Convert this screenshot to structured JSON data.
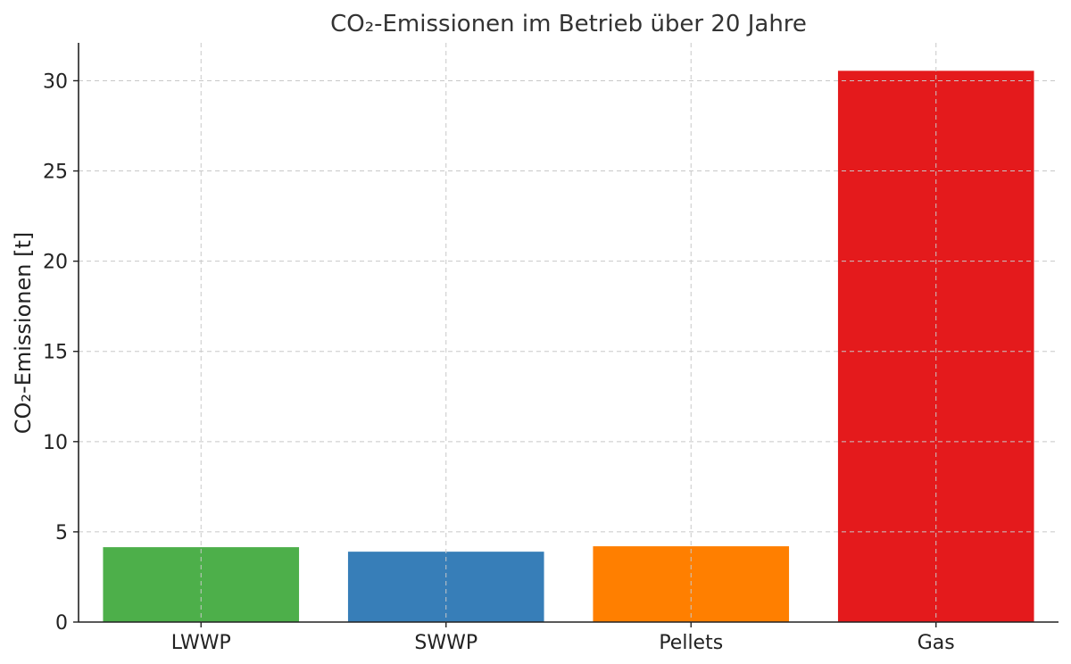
{
  "chart_data": {
    "type": "bar",
    "title": "CO₂-Emissionen im Betrieb über 20 Jahre",
    "xlabel": "",
    "ylabel": "CO₂-Emissionen [t]",
    "categories": [
      "LWWP",
      "SWWP",
      "Pellets",
      "Gas"
    ],
    "values": [
      4.15,
      3.9,
      4.2,
      30.55
    ],
    "colors": [
      "#4daf4a",
      "#377eb8",
      "#ff7f00",
      "#e41a1c"
    ],
    "ylim": [
      0,
      32.1
    ],
    "yticks": [
      0,
      5,
      10,
      15,
      20,
      25,
      30
    ],
    "grid": true,
    "legend": "none"
  }
}
